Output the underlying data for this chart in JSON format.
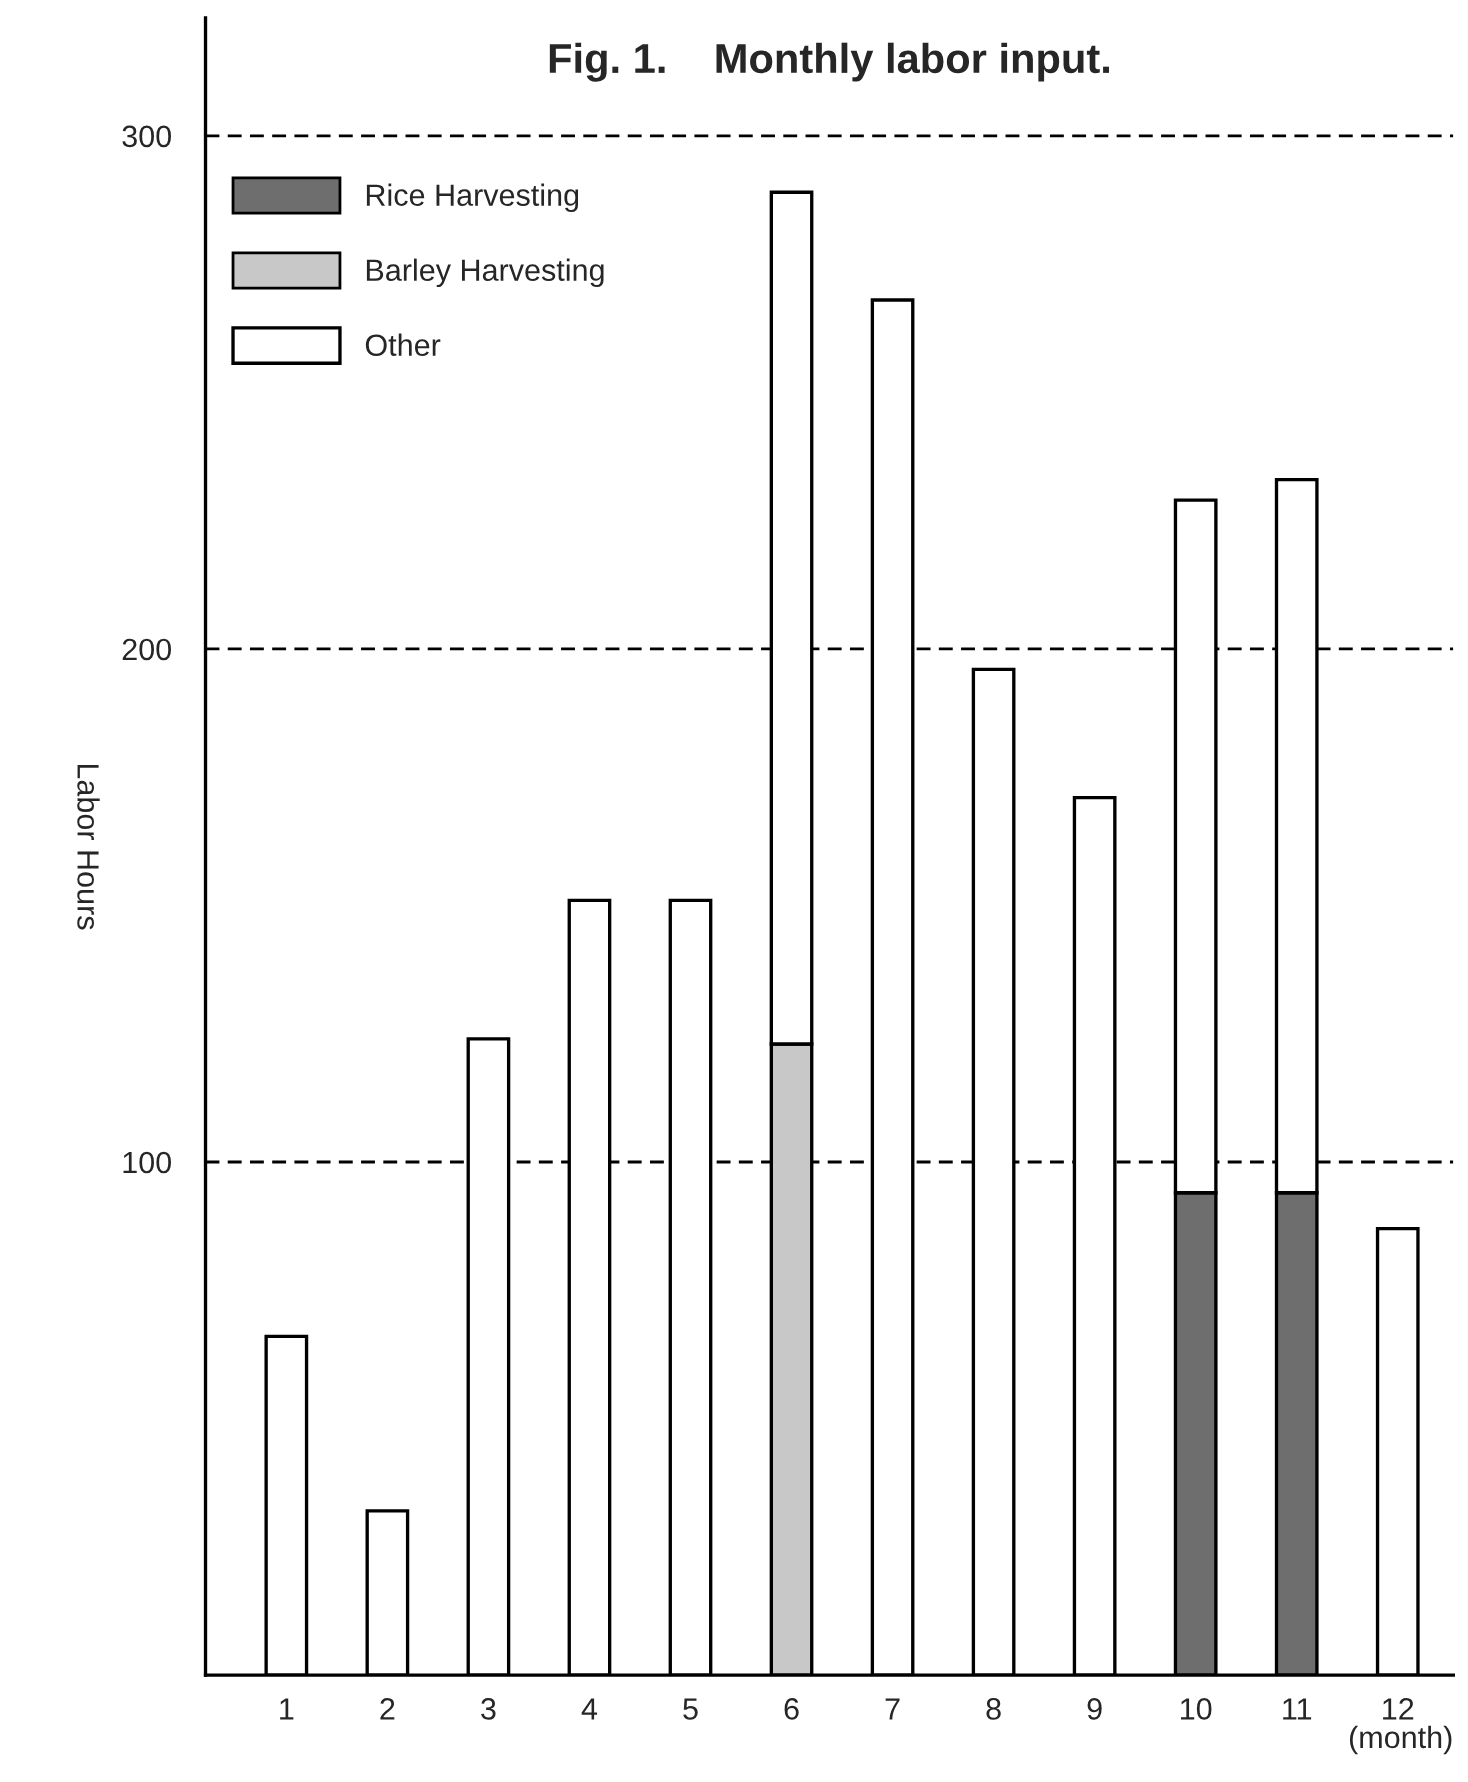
{
  "chart_data": {
    "type": "bar",
    "title": "Fig. 1.    Monthly labor input.",
    "xlabel": "(month)",
    "ylabel": "Labor Hours",
    "categories": [
      "1",
      "2",
      "3",
      "4",
      "5",
      "6",
      "7",
      "8",
      "9",
      "10",
      "11",
      "12"
    ],
    "stacked": true,
    "series": [
      {
        "name": "Rice Harvesting",
        "color": "#6e6e6e",
        "values": [
          0,
          0,
          0,
          0,
          0,
          0,
          0,
          0,
          0,
          94,
          94,
          0
        ]
      },
      {
        "name": "Barley Harvesting",
        "color": "#c8c8c8",
        "values": [
          0,
          0,
          0,
          0,
          0,
          123,
          0,
          0,
          0,
          0,
          0,
          0
        ]
      },
      {
        "name": "Other",
        "color": "#ffffff",
        "values": [
          66,
          32,
          124,
          151,
          151,
          166,
          268,
          196,
          171,
          135,
          139,
          87
        ]
      }
    ],
    "ylim": [
      0,
      323
    ],
    "yticks": [
      100,
      200,
      300
    ],
    "grid": "y",
    "legend": "top left"
  }
}
